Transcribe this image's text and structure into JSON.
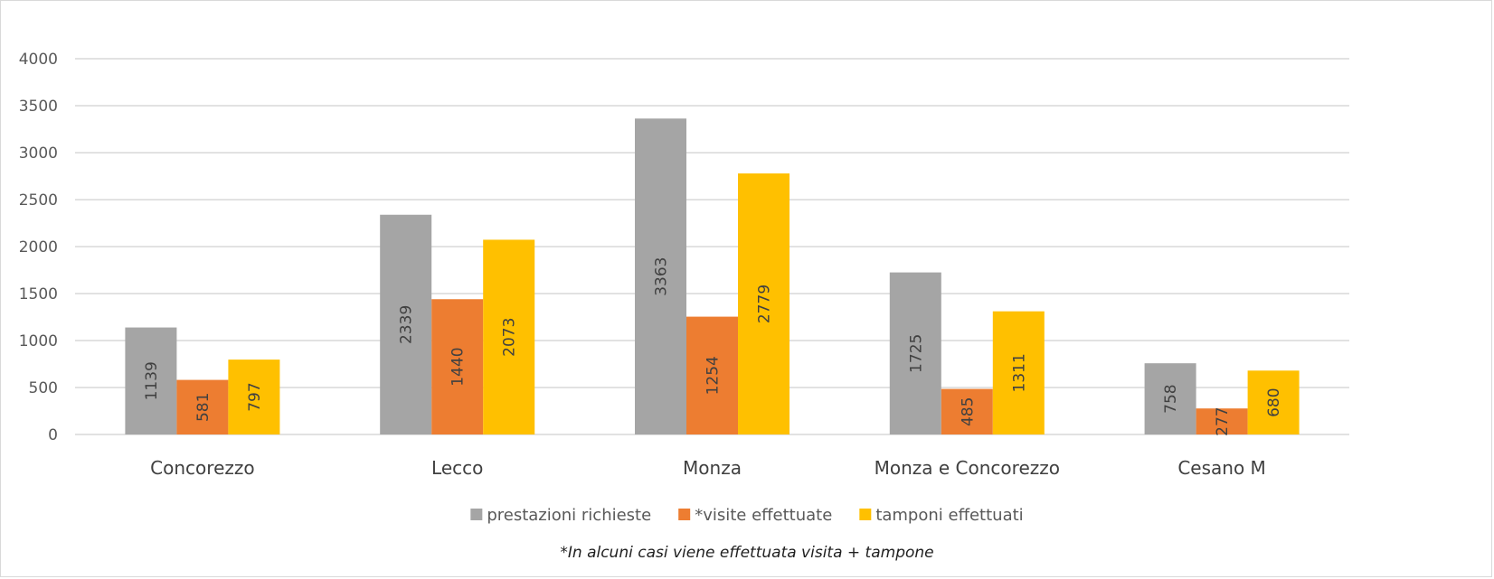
{
  "chart_data": {
    "type": "bar",
    "categories": [
      "Concorezzo",
      "Lecco",
      "Monza",
      "Monza e Concorezzo",
      "Cesano M"
    ],
    "series": [
      {
        "name": "prestazioni richieste",
        "color": "#a5a5a5",
        "values": [
          1139,
          2339,
          3363,
          1725,
          758
        ]
      },
      {
        "name": "*visite effettuate",
        "color": "#ed7d31",
        "values": [
          581,
          1440,
          1254,
          485,
          277
        ]
      },
      {
        "name": "tamponi effettuati",
        "color": "#ffc000",
        "values": [
          797,
          2073,
          2779,
          1311,
          680
        ]
      }
    ],
    "ylim": [
      0,
      4000
    ],
    "yticks": [
      0,
      500,
      1000,
      1500,
      2000,
      2500,
      3000,
      3500,
      4000
    ],
    "grid": true,
    "legend_position": "bottom",
    "data_labels": "rotated-inside",
    "footnote": "*In alcuni casi viene effettuata visita + tampone"
  }
}
